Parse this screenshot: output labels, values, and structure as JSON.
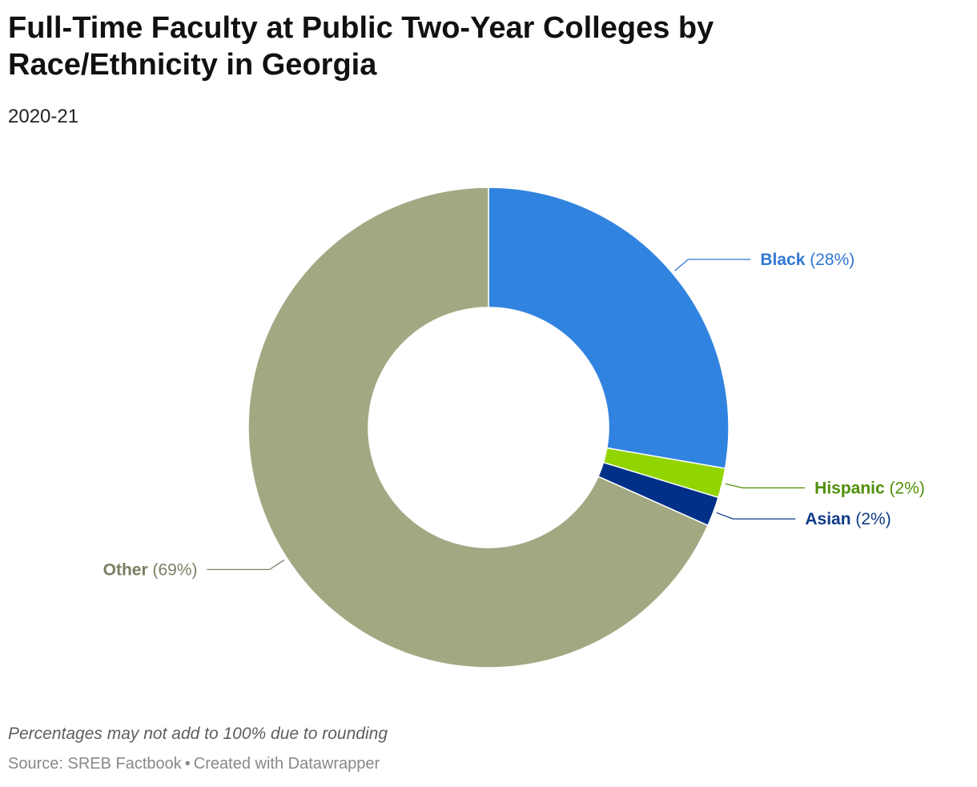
{
  "title": "Full-Time Faculty at Public Two-Year Colleges by Race/Ethnicity in Georgia",
  "subtitle": "2020-21",
  "notes": "Percentages may not add to 100% due to rounding",
  "source": {
    "prefix": "Source: SREB Factbook",
    "separator": "•",
    "credit": "Created with Datawrapper"
  },
  "chart_data": {
    "type": "pie",
    "subtype": "donut",
    "slices": [
      {
        "name": "Black",
        "value": 28,
        "label": "(28%)",
        "color": "#3183e0",
        "label_color": "#3177d2"
      },
      {
        "name": "Hispanic",
        "value": 2,
        "label": "(2%)",
        "color": "#91d400",
        "label_color": "#4f8f06"
      },
      {
        "name": "Asian",
        "value": 2,
        "label": "(2%)",
        "color": "#003087",
        "label_color": "#0f3a86"
      },
      {
        "name": "Other",
        "value": 69,
        "label": "(69%)",
        "color": "#a2a882",
        "label_color": "#7a7f63"
      }
    ]
  }
}
